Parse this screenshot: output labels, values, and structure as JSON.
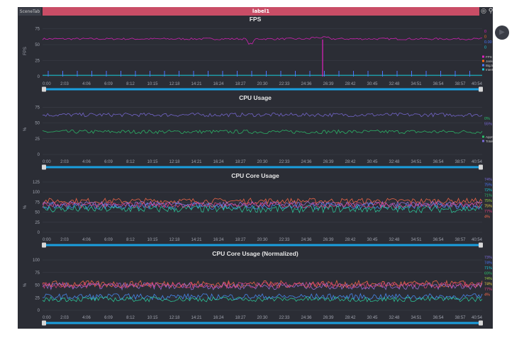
{
  "tab": {
    "label": "SceneTab"
  },
  "header": {
    "title": "label1"
  },
  "toolbar": {
    "icons": [
      "location-icon",
      "pin-icon",
      "folder-icon",
      "cloud-icon"
    ]
  },
  "colors": {
    "background": "#2b2d35",
    "header": "#c94d66",
    "timeline": "#1a9fdf"
  },
  "x_ticks": [
    "0:00",
    "2:03",
    "4:06",
    "6:09",
    "8:12",
    "10:15",
    "12:18",
    "14:21",
    "16:24",
    "18:27",
    "20:30",
    "22:33",
    "24:36",
    "26:39",
    "28:42",
    "30:45",
    "32:48",
    "34:51",
    "36:54",
    "38:57",
    "40:54"
  ],
  "chart_data": [
    {
      "type": "line",
      "title": "FPS",
      "ylabel": "FPS",
      "ylim": [
        0,
        80
      ],
      "yticks": [
        0,
        25,
        50,
        75
      ],
      "x": [
        "0:00",
        "40:54"
      ],
      "series": [
        {
          "name": "FPS",
          "color": "#e020c0",
          "mean": 59,
          "noise": 1.5
        },
        {
          "name": "Jank(卡顿次数)",
          "color": "#ff6a1a",
          "mean": 0,
          "noise": 0
        },
        {
          "name": "BigJank(严重卡顿)",
          "color": "#4a78ff",
          "mean": 0,
          "noise": 0
        },
        {
          "name": "InterFrame",
          "color": "#18c8d8",
          "mean": 0,
          "noise": 0
        }
      ],
      "legend_values": [
        "0",
        "0",
        "0.00",
        "0"
      ],
      "legend_value_colors": [
        "#e020c0",
        "#ff6a1a",
        "#4a78ff",
        "#18c8d8"
      ]
    },
    {
      "type": "line",
      "title": "CPU Usage",
      "ylabel": "%",
      "ylim": [
        0,
        80
      ],
      "yticks": [
        0,
        25,
        50,
        75
      ],
      "x": [
        "0:00",
        "40:54"
      ],
      "series": [
        {
          "name": "AppCPU",
          "color": "#2bbf6a",
          "mean": 36,
          "noise": 3
        },
        {
          "name": "TotalCPU",
          "color": "#7a6ad8",
          "mean": 63,
          "noise": 3
        }
      ],
      "legend_values": [
        "0%",
        "55%"
      ],
      "legend_value_colors": [
        "#2bbf6a",
        "#7a6ad8"
      ]
    },
    {
      "type": "line",
      "title": "CPU Core Usage",
      "ylabel": "%",
      "ylim": [
        0,
        125
      ],
      "yticks": [
        0,
        25,
        50,
        75,
        100,
        125
      ],
      "x": [
        "0:00",
        "40:54"
      ],
      "series": [
        {
          "name": "",
          "color": "#ff6a4a",
          "mean": 78,
          "noise": 7
        },
        {
          "name": "",
          "color": "#a070e0",
          "mean": 70,
          "noise": 7
        },
        {
          "name": "",
          "color": "#4a90ff",
          "mean": 65,
          "noise": 8
        },
        {
          "name": "",
          "color": "#2bd0a0",
          "mean": 58,
          "noise": 9
        },
        {
          "name": "",
          "color": "#e04080",
          "mean": 68,
          "noise": 7
        }
      ],
      "legend_values": [
        "74%",
        "75%",
        "72%",
        "71%",
        "75%",
        "75%",
        "77%",
        "4%"
      ],
      "legend_value_colors": [
        "#7a6ad8",
        "#4a78ff",
        "#18c8d8",
        "#2bbf6a",
        "#9ad040",
        "#e8d040",
        "#e04080",
        "#ff6a4a"
      ]
    },
    {
      "type": "line",
      "title": "CPU Core Usage (Normalized)",
      "ylabel": "%",
      "ylim": [
        0,
        100
      ],
      "yticks": [
        0,
        25,
        50,
        75,
        100
      ],
      "x": [
        "0:00",
        "40:54"
      ],
      "series": [
        {
          "name": "",
          "color": "#ff6a4a",
          "mean": 52,
          "noise": 7
        },
        {
          "name": "",
          "color": "#a070e0",
          "mean": 48,
          "noise": 7
        },
        {
          "name": "",
          "color": "#4a90ff",
          "mean": 27,
          "noise": 6
        },
        {
          "name": "",
          "color": "#2bd0a0",
          "mean": 22,
          "noise": 5
        },
        {
          "name": "",
          "color": "#e04080",
          "mean": 50,
          "noise": 6
        }
      ],
      "legend_values": [
        "73%",
        "74%",
        "71%",
        "69%",
        "74%",
        "74%",
        "77%",
        "4%"
      ],
      "legend_value_colors": [
        "#7a6ad8",
        "#4a78ff",
        "#18c8d8",
        "#2bbf6a",
        "#9ad040",
        "#e8d040",
        "#e04080",
        "#ff6a4a"
      ]
    }
  ]
}
